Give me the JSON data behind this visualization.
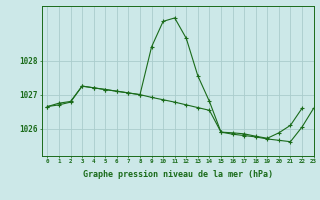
{
  "title": "Graphe pression niveau de la mer (hPa)",
  "background_color": "#cce8e8",
  "grid_color": "#aacccc",
  "line_color": "#1a6b1a",
  "xlim": [
    -0.5,
    23
  ],
  "ylim": [
    1025.2,
    1029.6
  ],
  "yticks": [
    1026,
    1027,
    1028
  ],
  "xticks": [
    0,
    1,
    2,
    3,
    4,
    5,
    6,
    7,
    8,
    9,
    10,
    11,
    12,
    13,
    14,
    15,
    16,
    17,
    18,
    19,
    20,
    21,
    22,
    23
  ],
  "xtick_labels": [
    "0",
    "1",
    "2",
    "3",
    "4",
    "5",
    "6",
    "7",
    "8",
    "9",
    "10",
    "11",
    "12",
    "13",
    "14",
    "15",
    "16",
    "17",
    "18",
    "19",
    "20",
    "21",
    "22",
    "23"
  ],
  "series1": [
    1026.65,
    1026.75,
    1026.8,
    1027.25,
    1027.2,
    1027.15,
    1027.1,
    1027.05,
    1027.0,
    1028.4,
    1029.15,
    1029.25,
    1028.65,
    1027.55,
    1026.8,
    1025.9,
    1025.88,
    1025.85,
    1025.78,
    1025.72,
    1025.88,
    1026.1,
    1026.6,
    null
  ],
  "series2": [
    1026.65,
    1026.7,
    1026.78,
    1027.25,
    1027.2,
    1027.15,
    1027.1,
    1027.05,
    1027.0,
    1026.92,
    1026.85,
    1026.78,
    1026.7,
    1026.62,
    1026.54,
    1025.9,
    1025.84,
    1025.8,
    1025.76,
    1025.7,
    1025.66,
    1025.62,
    1026.05,
    1026.6
  ],
  "xlabel_fontsize": 6.0,
  "ylabel_fontsize": 5.5,
  "xtick_fontsize": 4.2,
  "ytick_fontsize": 5.5
}
